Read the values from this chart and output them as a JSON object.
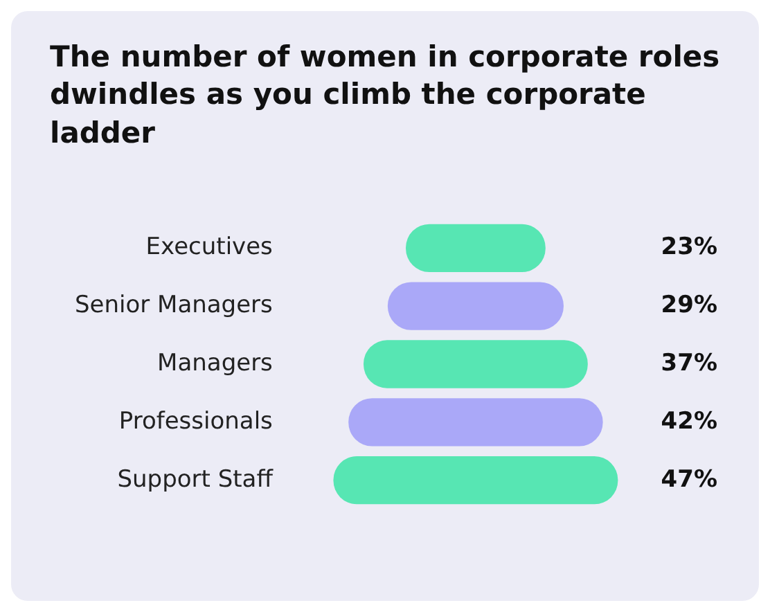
{
  "chart_data": {
    "type": "other",
    "title": "The number of women in corporate roles dwindles as you climb the corporate ladder",
    "categories": [
      "Executives",
      "Senior Managers",
      "Managers",
      "Professionals",
      "Support Staff"
    ],
    "values": [
      23,
      29,
      37,
      42,
      47
    ],
    "value_labels": [
      "23%",
      "29%",
      "37%",
      "42%",
      "47%"
    ],
    "colors": [
      "#57e6b3",
      "#aaa8f8",
      "#57e6b3",
      "#aaa8f8",
      "#57e6b3"
    ]
  }
}
